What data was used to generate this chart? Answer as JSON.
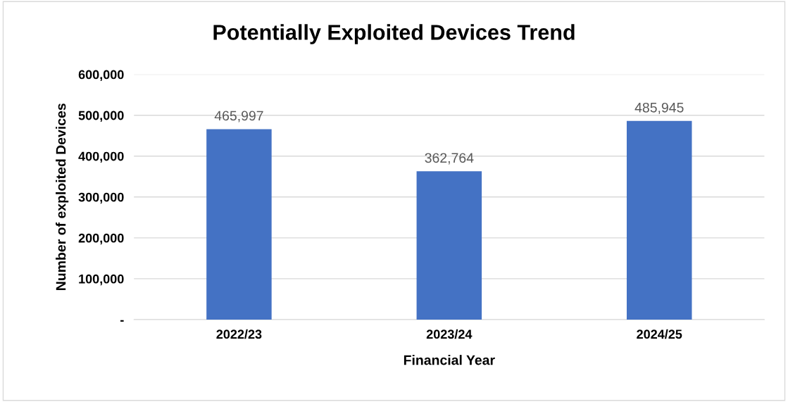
{
  "chart_data": {
    "type": "bar",
    "title": "Potentially Exploited Devices Trend",
    "xlabel": "Financial Year",
    "ylabel": "Number of exploited Devices",
    "categories": [
      "2022/23",
      "2023/24",
      "2024/25"
    ],
    "values": [
      465997,
      362764,
      485945
    ],
    "value_labels": [
      "465,997",
      "362,764",
      "485,945"
    ],
    "color": "#4472c4",
    "ylim": [
      0,
      600000
    ],
    "yticks": [
      {
        "value": 0,
        "label": "-"
      },
      {
        "value": 100000,
        "label": "100,000"
      },
      {
        "value": 200000,
        "label": "200,000"
      },
      {
        "value": 300000,
        "label": "300,000"
      },
      {
        "value": 400000,
        "label": "400,000"
      },
      {
        "value": 500000,
        "label": "500,000"
      },
      {
        "value": 600000,
        "label": "600,000"
      }
    ],
    "grid": "y"
  }
}
